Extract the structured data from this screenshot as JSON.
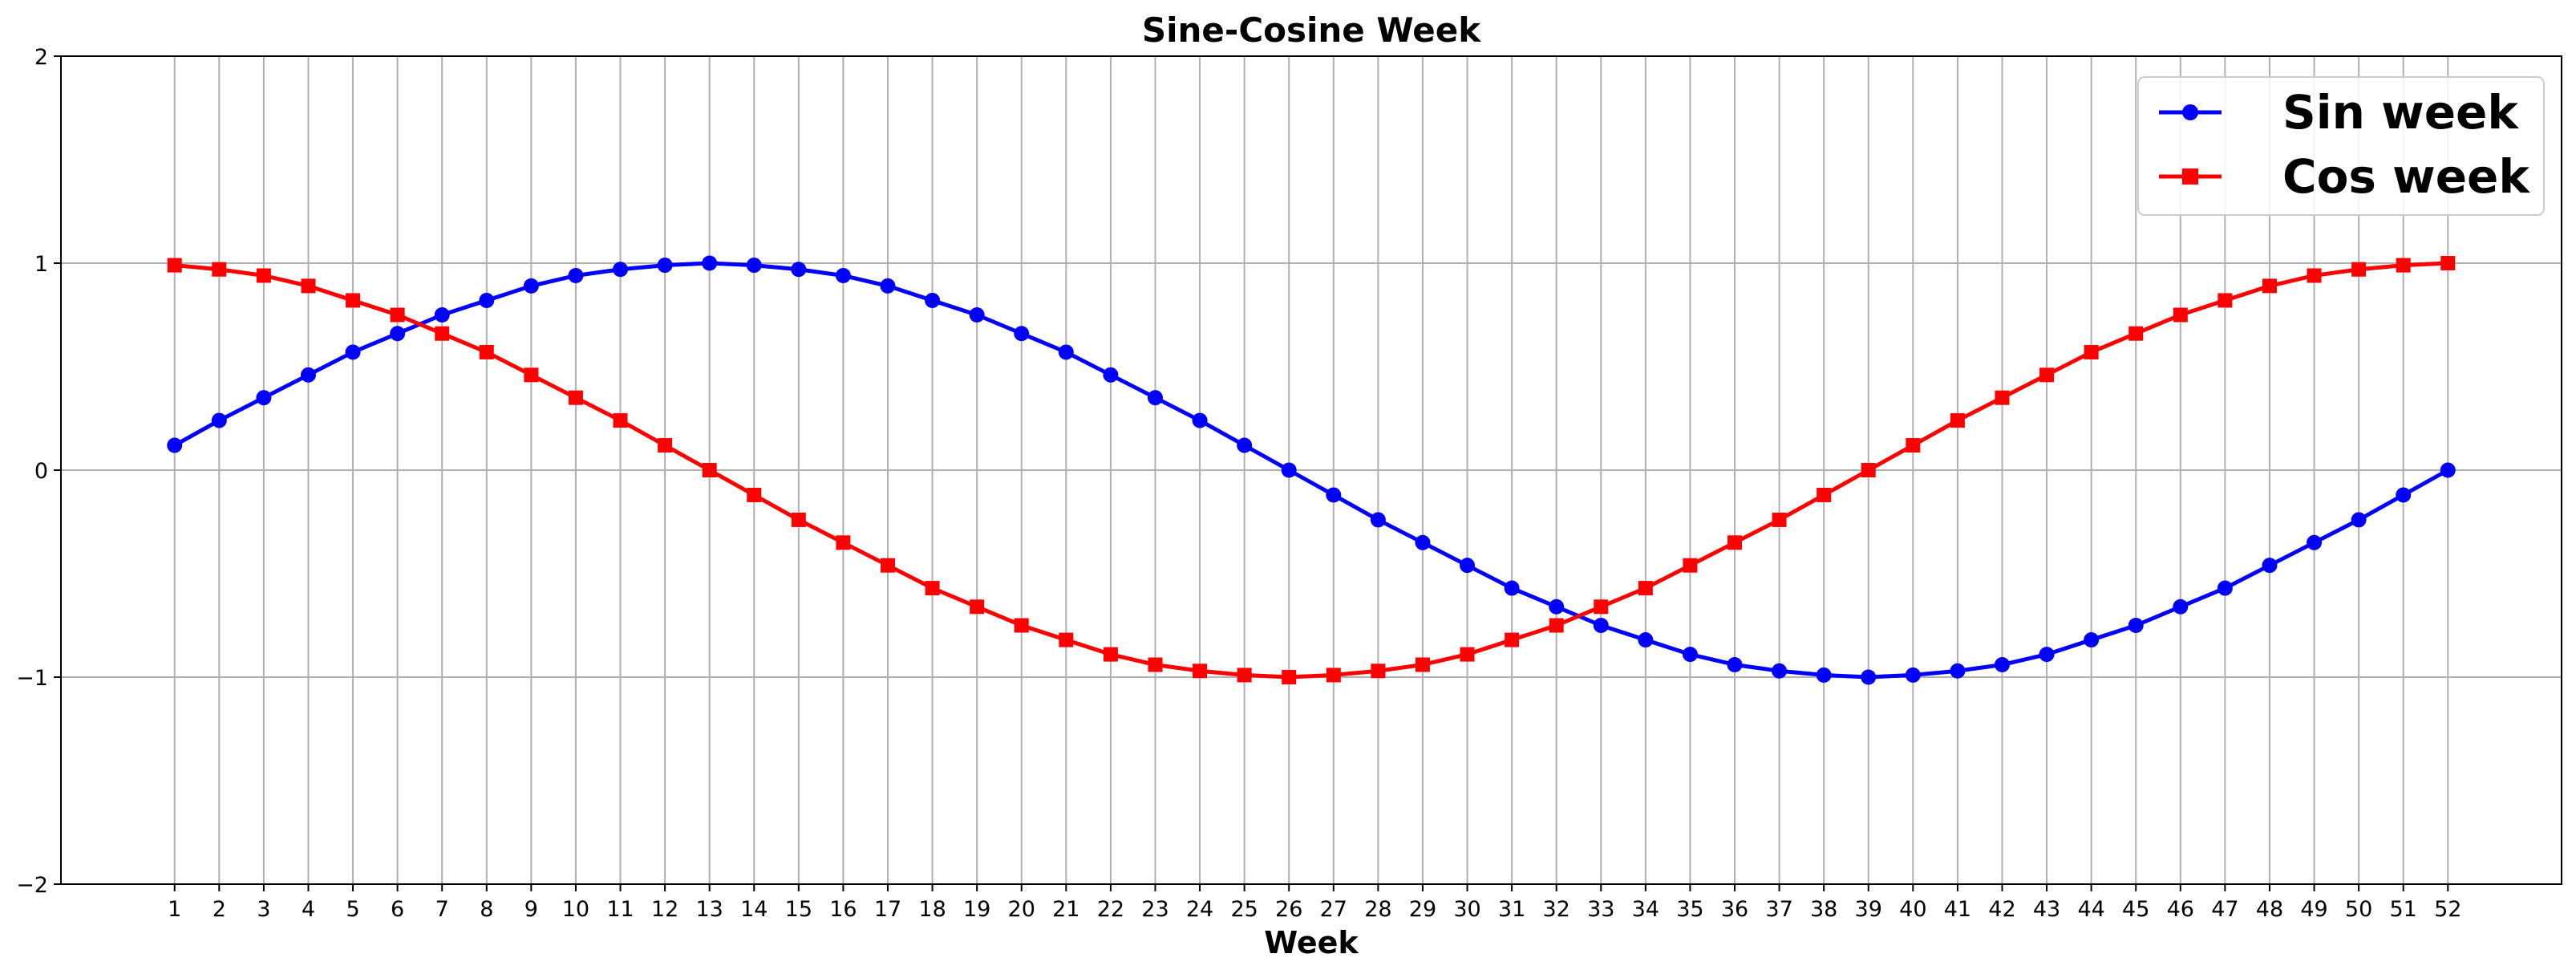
{
  "chart_data": {
    "type": "line",
    "title": "Sine-Cosine Week",
    "xlabel": "Week",
    "ylabel": "",
    "x": [
      1,
      2,
      3,
      4,
      5,
      6,
      7,
      8,
      9,
      10,
      11,
      12,
      13,
      14,
      15,
      16,
      17,
      18,
      19,
      20,
      21,
      22,
      23,
      24,
      25,
      26,
      27,
      28,
      29,
      30,
      31,
      32,
      33,
      34,
      35,
      36,
      37,
      38,
      39,
      40,
      41,
      42,
      43,
      44,
      45,
      46,
      47,
      48,
      49,
      50,
      51,
      52
    ],
    "xlim": [
      -1.55,
      54.55
    ],
    "ylim": [
      -2,
      2
    ],
    "yticks": [
      -2,
      -1,
      0,
      1,
      2
    ],
    "ytick_labels": [
      "−2",
      "−1",
      "0",
      "1",
      "2"
    ],
    "grid": true,
    "legend_position": "top-right",
    "series": [
      {
        "name": "Sin week",
        "color": "#0000ff",
        "marker": "circle",
        "values": [
          0.12,
          0.24,
          0.35,
          0.46,
          0.57,
          0.66,
          0.75,
          0.82,
          0.89,
          0.94,
          0.97,
          0.99,
          1.0,
          0.99,
          0.97,
          0.94,
          0.89,
          0.82,
          0.75,
          0.66,
          0.57,
          0.46,
          0.35,
          0.24,
          0.12,
          0.0,
          -0.12,
          -0.24,
          -0.35,
          -0.46,
          -0.57,
          -0.66,
          -0.75,
          -0.82,
          -0.89,
          -0.94,
          -0.97,
          -0.99,
          -1.0,
          -0.99,
          -0.97,
          -0.94,
          -0.89,
          -0.82,
          -0.75,
          -0.66,
          -0.57,
          -0.46,
          -0.35,
          -0.24,
          -0.12,
          0.0
        ]
      },
      {
        "name": "Cos week",
        "color": "#ff0000",
        "marker": "square",
        "values": [
          0.99,
          0.97,
          0.94,
          0.89,
          0.82,
          0.75,
          0.66,
          0.57,
          0.46,
          0.35,
          0.24,
          0.12,
          0.0,
          -0.12,
          -0.24,
          -0.35,
          -0.46,
          -0.57,
          -0.66,
          -0.75,
          -0.82,
          -0.89,
          -0.94,
          -0.97,
          -0.99,
          -1.0,
          -0.99,
          -0.97,
          -0.94,
          -0.89,
          -0.82,
          -0.75,
          -0.66,
          -0.57,
          -0.46,
          -0.35,
          -0.24,
          -0.12,
          0.0,
          0.12,
          0.24,
          0.35,
          0.46,
          0.57,
          0.66,
          0.75,
          0.82,
          0.89,
          0.94,
          0.97,
          0.99,
          1.0
        ]
      }
    ]
  }
}
